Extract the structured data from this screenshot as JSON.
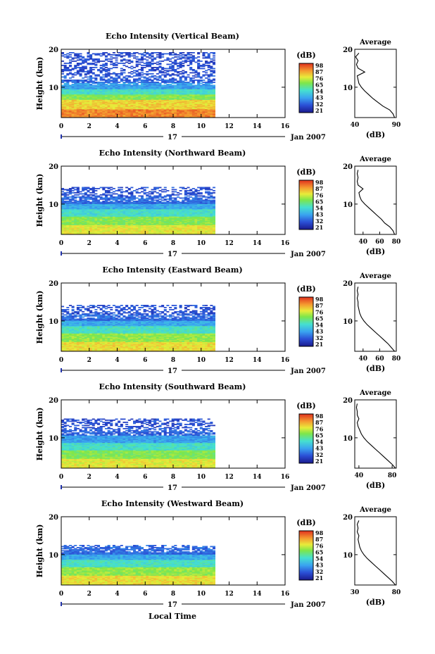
{
  "figure": {
    "xlabel": "Local Time",
    "date_label": "Jan 2007",
    "day_label": "17",
    "colorbar_unit": "(dB)",
    "avg_title": "Average",
    "avg_xlabel": "(dB)",
    "ylabel": "Height (km)"
  },
  "chart_data": [
    {
      "type": "heatmap",
      "title": "Echo Intensity (Vertical Beam)",
      "xlabel": "Local Time",
      "ylabel": "Height (km)",
      "xlim": [
        0,
        16
      ],
      "ylim": [
        2,
        20
      ],
      "x_ticks": [
        "0",
        "2",
        "4",
        "6",
        "8",
        "10",
        "12",
        "14",
        "16"
      ],
      "y_ticks": [
        "10",
        "20"
      ],
      "data_end_time": 11,
      "top_height": 19,
      "colorbar": {
        "unit": "(dB)",
        "ticks": [
          "98",
          "87",
          "76",
          "65",
          "54",
          "43",
          "32",
          "21"
        ]
      },
      "layers": [
        {
          "h_min": 2.0,
          "h_max": 4.0,
          "level": 0.88
        },
        {
          "h_min": 4.0,
          "h_max": 6.5,
          "level": 0.76
        },
        {
          "h_min": 6.5,
          "h_max": 8.0,
          "level": 0.6
        },
        {
          "h_min": 8.0,
          "h_max": 9.5,
          "level": 0.45
        },
        {
          "h_min": 9.5,
          "h_max": 11.0,
          "level": 0.3
        },
        {
          "h_min": 11.0,
          "h_max": 13.0,
          "level": 0.18
        },
        {
          "h_min": 13.0,
          "h_max": 19.0,
          "level": 0.14
        }
      ],
      "average_profile": {
        "title": "Average",
        "xlabel": "(dB)",
        "xlim": [
          40,
          90
        ],
        "x_ticks": [
          "40",
          "90"
        ],
        "y_ticks": [
          "10",
          "20"
        ],
        "height": [
          2,
          3,
          4,
          5,
          6,
          7,
          8,
          9,
          10,
          11,
          12,
          13,
          14,
          15,
          16,
          17,
          18,
          19
        ],
        "db": [
          88,
          86,
          82,
          74,
          68,
          62,
          57,
          52,
          48,
          45,
          44,
          43,
          52,
          44,
          42,
          44,
          41,
          45
        ]
      }
    },
    {
      "type": "heatmap",
      "title": "Echo Intensity (Northward Beam)",
      "xlabel": "Local Time",
      "ylabel": "Height (km)",
      "xlim": [
        0,
        16
      ],
      "ylim": [
        2,
        20
      ],
      "x_ticks": [
        "0",
        "2",
        "4",
        "6",
        "8",
        "10",
        "12",
        "14",
        "16"
      ],
      "y_ticks": [
        "10",
        "20"
      ],
      "data_end_time": 11,
      "top_height": 14.5,
      "colorbar": {
        "unit": "(dB)",
        "ticks": [
          "98",
          "87",
          "76",
          "65",
          "54",
          "43",
          "32",
          "21"
        ]
      },
      "layers": [
        {
          "h_min": 2.0,
          "h_max": 4.5,
          "level": 0.72
        },
        {
          "h_min": 4.5,
          "h_max": 6.5,
          "level": 0.6
        },
        {
          "h_min": 6.5,
          "h_max": 8.5,
          "level": 0.45
        },
        {
          "h_min": 8.5,
          "h_max": 10.0,
          "level": 0.32
        },
        {
          "h_min": 10.0,
          "h_max": 12.0,
          "level": 0.2
        },
        {
          "h_min": 12.0,
          "h_max": 14.5,
          "level": 0.15
        }
      ],
      "average_profile": {
        "title": "Average",
        "xlabel": "(dB)",
        "xlim": [
          30,
          80
        ],
        "x_ticks": [
          "40",
          "60",
          "80"
        ],
        "y_ticks": [
          "10",
          "20"
        ],
        "height": [
          2,
          3,
          4,
          5,
          6,
          7,
          8,
          9,
          10,
          11,
          12,
          13,
          14,
          15,
          16,
          17,
          18,
          19
        ],
        "db": [
          78,
          76,
          72,
          66,
          62,
          57,
          52,
          47,
          42,
          38,
          36,
          35,
          40,
          34,
          33,
          34,
          33,
          34
        ]
      }
    },
    {
      "type": "heatmap",
      "title": "Echo Intensity (Eastward Beam)",
      "xlabel": "Local Time",
      "ylabel": "Height (km)",
      "xlim": [
        0,
        16
      ],
      "ylim": [
        2,
        20
      ],
      "x_ticks": [
        "0",
        "2",
        "4",
        "6",
        "8",
        "10",
        "12",
        "14",
        "16"
      ],
      "y_ticks": [
        "10",
        "20"
      ],
      "data_end_time": 11,
      "top_height": 14,
      "colorbar": {
        "unit": "(dB)",
        "ticks": [
          "98",
          "87",
          "76",
          "65",
          "54",
          "43",
          "32",
          "21"
        ]
      },
      "layers": [
        {
          "h_min": 2.0,
          "h_max": 4.5,
          "level": 0.74
        },
        {
          "h_min": 4.5,
          "h_max": 6.5,
          "level": 0.62
        },
        {
          "h_min": 6.5,
          "h_max": 8.5,
          "level": 0.46
        },
        {
          "h_min": 8.5,
          "h_max": 10.0,
          "level": 0.32
        },
        {
          "h_min": 10.0,
          "h_max": 11.5,
          "level": 0.2
        },
        {
          "h_min": 11.5,
          "h_max": 14.0,
          "level": 0.15
        }
      ],
      "average_profile": {
        "title": "Average",
        "xlabel": "(dB)",
        "xlim": [
          30,
          80
        ],
        "x_ticks": [
          "40",
          "60",
          "80"
        ],
        "y_ticks": [
          "10",
          "20"
        ],
        "height": [
          2,
          3,
          4,
          5,
          6,
          7,
          8,
          9,
          10,
          11,
          12,
          13,
          14,
          15,
          16,
          17,
          18,
          19
        ],
        "db": [
          78,
          74,
          70,
          65,
          60,
          55,
          50,
          45,
          41,
          38,
          36,
          35,
          34,
          34,
          33,
          34,
          33,
          34
        ]
      }
    },
    {
      "type": "heatmap",
      "title": "Echo Intensity (Southward Beam)",
      "xlabel": "Local Time",
      "ylabel": "Height (km)",
      "xlim": [
        0,
        16
      ],
      "ylim": [
        2,
        20
      ],
      "x_ticks": [
        "0",
        "2",
        "4",
        "6",
        "8",
        "10",
        "12",
        "14",
        "16"
      ],
      "y_ticks": [
        "10",
        "20"
      ],
      "data_end_time": 11,
      "top_height": 15,
      "colorbar": {
        "unit": "(dB)",
        "ticks": [
          "98",
          "87",
          "76",
          "65",
          "54",
          "43",
          "32",
          "21"
        ]
      },
      "layers": [
        {
          "h_min": 2.0,
          "h_max": 4.5,
          "level": 0.72
        },
        {
          "h_min": 4.5,
          "h_max": 6.5,
          "level": 0.6
        },
        {
          "h_min": 6.5,
          "h_max": 8.5,
          "level": 0.45
        },
        {
          "h_min": 8.5,
          "h_max": 10.5,
          "level": 0.3
        },
        {
          "h_min": 10.5,
          "h_max": 12.5,
          "level": 0.18
        },
        {
          "h_min": 12.5,
          "h_max": 15.0,
          "level": 0.14
        }
      ],
      "average_profile": {
        "title": "Average",
        "xlabel": "(dB)",
        "xlim": [
          35,
          85
        ],
        "x_ticks": [
          "40",
          "80"
        ],
        "y_ticks": [
          "10",
          "20"
        ],
        "height": [
          2,
          3,
          4,
          5,
          6,
          7,
          8,
          9,
          10,
          11,
          12,
          13,
          14,
          15,
          16,
          17,
          18,
          19
        ],
        "db": [
          84,
          80,
          75,
          70,
          65,
          60,
          55,
          50,
          46,
          43,
          41,
          39,
          38,
          40,
          38,
          38,
          37,
          38
        ]
      }
    },
    {
      "type": "heatmap",
      "title": "Echo Intensity (Westward Beam)",
      "xlabel": "Local Time",
      "ylabel": "Height (km)",
      "xlim": [
        0,
        16
      ],
      "ylim": [
        2,
        20
      ],
      "x_ticks": [
        "0",
        "2",
        "4",
        "6",
        "8",
        "10",
        "12",
        "14",
        "16"
      ],
      "y_ticks": [
        "10",
        "20"
      ],
      "data_end_time": 11,
      "top_height": 12.5,
      "colorbar": {
        "unit": "(dB)",
        "ticks": [
          "98",
          "87",
          "76",
          "65",
          "54",
          "43",
          "32",
          "21"
        ]
      },
      "layers": [
        {
          "h_min": 2.0,
          "h_max": 4.5,
          "level": 0.74
        },
        {
          "h_min": 4.5,
          "h_max": 6.5,
          "level": 0.62
        },
        {
          "h_min": 6.5,
          "h_max": 8.5,
          "level": 0.46
        },
        {
          "h_min": 8.5,
          "h_max": 10.0,
          "level": 0.32
        },
        {
          "h_min": 10.0,
          "h_max": 12.5,
          "level": 0.2
        }
      ],
      "average_profile": {
        "title": "Average",
        "xlabel": "(dB)",
        "xlim": [
          30,
          80
        ],
        "x_ticks": [
          "30",
          "80"
        ],
        "y_ticks": [
          "10",
          "20"
        ],
        "height": [
          2,
          3,
          4,
          5,
          6,
          7,
          8,
          9,
          10,
          11,
          12,
          13,
          14,
          15,
          16,
          17,
          18,
          19
        ],
        "db": [
          79,
          75,
          70,
          65,
          60,
          55,
          50,
          45,
          41,
          38,
          36,
          35,
          34,
          35,
          33,
          34,
          33,
          35
        ]
      }
    }
  ]
}
